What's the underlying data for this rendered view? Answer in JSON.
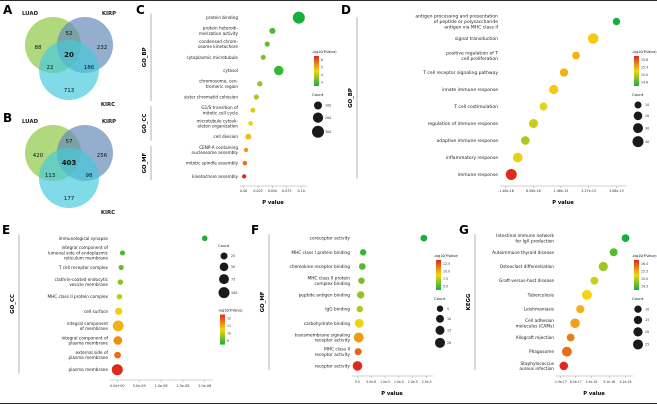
{
  "panels": {
    "a": "A",
    "b": "B",
    "c": "C",
    "d": "D",
    "e": "E",
    "f": "F",
    "g": "G"
  },
  "chart_data": [
    {
      "id": "venn_a",
      "type": "venn",
      "sets": [
        {
          "label": "LUAD",
          "color": "#8bc53f"
        },
        {
          "label": "KIRP",
          "color": "#6188b7"
        },
        {
          "label": "KIRC",
          "color": "#45c8dc"
        }
      ],
      "regions": {
        "set1_only": "88",
        "set1_set2": "52",
        "set2_only": "232",
        "center": "20",
        "set1_set3": "22",
        "set2_set3": "186",
        "set3_only": "713"
      }
    },
    {
      "id": "venn_b",
      "type": "venn",
      "sets": [
        {
          "label": "LUAD",
          "color": "#8bc53f"
        },
        {
          "label": "KIRP",
          "color": "#6188b7"
        },
        {
          "label": "KIRC",
          "color": "#45c8dc"
        }
      ],
      "regions": {
        "set1_only": "420",
        "set1_set2": "57",
        "set2_only": "256",
        "center": "403",
        "set1_set3": "113",
        "set2_set3": "98",
        "set3_only": "177"
      }
    },
    {
      "id": "c",
      "type": "scatter",
      "xlabel": "P value",
      "x_range": [
        -0.003,
        0.105
      ],
      "x_ticks": [
        {
          "v": 0,
          "label": "0.00"
        },
        {
          "v": 0.025,
          "label": "0.025"
        },
        {
          "v": 0.05,
          "label": "0.050"
        },
        {
          "v": 0.075,
          "label": "0.075"
        },
        {
          "v": 0.1,
          "label": "0.10"
        }
      ],
      "color_domain": [
        2,
        7
      ],
      "max_count": 300,
      "groups": [
        {
          "label": "GO_BP",
          "rows": [
            0,
            6
          ]
        },
        {
          "label": "GO_CC",
          "rows": [
            7,
            9
          ]
        },
        {
          "label": "GO_MF",
          "rows": [
            10,
            12
          ]
        }
      ],
      "terms": [
        {
          "lines": [
            "protein binding"
          ],
          "x": 0.096,
          "neglog": 2.0,
          "count": 300
        },
        {
          "lines": [
            "protein heterodi-",
            "merization activity"
          ],
          "x": 0.05,
          "neglog": 2.6,
          "count": 40
        },
        {
          "lines": [
            "condensed chrom-",
            "osome kinetochore"
          ],
          "x": 0.041,
          "neglog": 2.9,
          "count": 24
        },
        {
          "lines": [
            "cytoplasmic microtubule"
          ],
          "x": 0.034,
          "neglog": 3.1,
          "count": 20
        },
        {
          "lines": [
            "cytosol"
          ],
          "x": 0.061,
          "neglog": 2.4,
          "count": 160
        },
        {
          "lines": [
            "chromosome, cen-",
            "tromeric region"
          ],
          "x": 0.028,
          "neglog": 3.4,
          "count": 26
        },
        {
          "lines": [
            "sister chromatid cohesion"
          ],
          "x": 0.022,
          "neglog": 3.7,
          "count": 22
        },
        {
          "lines": [
            "G1/S transition of",
            "mitotic cell cycle"
          ],
          "x": 0.016,
          "neglog": 4.1,
          "count": 19
        },
        {
          "lines": [
            "microtubule cytosk-",
            "eleton organization"
          ],
          "x": 0.012,
          "neglog": 4.4,
          "count": 17
        },
        {
          "lines": [
            "cell division"
          ],
          "x": 0.008,
          "neglog": 4.9,
          "count": 38
        },
        {
          "lines": [
            "CENP-A containing",
            "nucleosome assembly"
          ],
          "x": 0.004,
          "neglog": 5.4,
          "count": 11
        },
        {
          "lines": [
            "mitotic spindle assembly"
          ],
          "x": 0.002,
          "neglog": 5.9,
          "count": 13
        },
        {
          "lines": [
            "kinetochore assembly"
          ],
          "x": 0.0008,
          "neglog": 7.0,
          "count": 10
        }
      ],
      "legend": {
        "order": [
          "color",
          "count"
        ],
        "color_title": "-log10(P.Value)",
        "color_ticks": [
          "6",
          "5",
          "4",
          "3"
        ],
        "count_title": "Count",
        "count_values": [
          100,
          200,
          300
        ]
      }
    },
    {
      "id": "d",
      "type": "scatter",
      "xlabel": "P value",
      "x_range": [
        -2.6e-16,
        3.3e-15
      ],
      "x_ticks": [
        {
          "v": -1.46e-16,
          "label": "-1.46e-16"
        },
        {
          "v": 6.56e-16,
          "label": "6.56e-16"
        },
        {
          "v": 1.46e-15,
          "label": "1.46e-15"
        },
        {
          "v": 2.27e-15,
          "label": "2.27e-15"
        },
        {
          "v": 3.08e-15,
          "label": "3.08e-15"
        }
      ],
      "color_domain": [
        14.5,
        16
      ],
      "max_count": 40,
      "groups": [
        {
          "label": "GO_BP",
          "rows": [
            0,
            9
          ]
        }
      ],
      "terms": [
        {
          "lines": [
            "antigen processing and presentation",
            "of peptide or polysaccharide",
            "antigen via MHC class II"
          ],
          "x": 3.08e-15,
          "neglog": 14.5,
          "count": 12
        },
        {
          "lines": [
            "signal transduction"
          ],
          "x": 2.4e-15,
          "neglog": 15.3,
          "count": 35
        },
        {
          "lines": [
            "positive regulation of T",
            "cell proliferation"
          ],
          "x": 1.9e-15,
          "neglog": 15.4,
          "count": 14
        },
        {
          "lines": [
            "T cell receptor signaling pathway"
          ],
          "x": 1.55e-15,
          "neglog": 15.4,
          "count": 18
        },
        {
          "lines": [
            "innate immune response"
          ],
          "x": 1.25e-15,
          "neglog": 15.3,
          "count": 24
        },
        {
          "lines": [
            "T cell costimulation"
          ],
          "x": 9.5e-16,
          "neglog": 15.2,
          "count": 15
        },
        {
          "lines": [
            "regulation of immune response"
          ],
          "x": 6.6e-16,
          "neglog": 15.1,
          "count": 23
        },
        {
          "lines": [
            "adaptive immune response"
          ],
          "x": 4.2e-16,
          "neglog": 15.0,
          "count": 20
        },
        {
          "lines": [
            "inflammatory response"
          ],
          "x": 2e-16,
          "neglog": 15.2,
          "count": 28
        },
        {
          "lines": [
            "immune response"
          ],
          "x": 1e-17,
          "neglog": 16.0,
          "count": 40
        }
      ],
      "legend": {
        "order": [
          "color",
          "count"
        ],
        "color_title": "-log10(P.Value)",
        "color_ticks": [
          "15.8",
          "15.4",
          "15.0",
          "14.6"
        ],
        "count_title": "Count",
        "count_values": [
          10,
          20,
          30,
          40
        ]
      }
    },
    {
      "id": "e",
      "type": "scatter",
      "xlabel": "",
      "x_range": [
        -1.2e-09,
        2.12e-08
      ],
      "x_ticks": [
        {
          "v": 0,
          "label": "0.0e+00"
        },
        {
          "v": 5e-09,
          "label": "5.0e-09"
        },
        {
          "v": 1e-08,
          "label": "1.0e-08"
        },
        {
          "v": 1.5e-08,
          "label": "1.5e-08"
        },
        {
          "v": 2e-08,
          "label": "2.0e-08"
        }
      ],
      "color_domain": [
        8,
        13
      ],
      "max_count": 100,
      "groups": [
        {
          "label": "GO_CC",
          "rows": [
            0,
            9
          ]
        }
      ],
      "terms": [
        {
          "lines": [
            "immunological synapse"
          ],
          "x": 2e-08,
          "neglog": 8.0,
          "count": 10
        },
        {
          "lines": [
            "integral component of",
            "lumenal side of endoplasmic",
            "reticulum membrane"
          ],
          "x": 1.2e-09,
          "neglog": 8.6,
          "count": 7
        },
        {
          "lines": [
            "T cell receptor complex"
          ],
          "x": 9e-10,
          "neglog": 8.9,
          "count": 8
        },
        {
          "lines": [
            "clathrin-coated endocytic",
            "vesicle membrane"
          ],
          "x": 7e-10,
          "neglog": 9.3,
          "count": 10
        },
        {
          "lines": [
            "MHC class II protein complex"
          ],
          "x": 5e-10,
          "neglog": 9.8,
          "count": 9
        },
        {
          "lines": [
            "cell surface"
          ],
          "x": 3.2e-10,
          "neglog": 10.6,
          "count": 30
        },
        {
          "lines": [
            "integral component",
            "of membrane"
          ],
          "x": 2.2e-10,
          "neglog": 11.0,
          "count": 95
        },
        {
          "lines": [
            "integral component of",
            "plasma membrane"
          ],
          "x": 1.4e-10,
          "neglog": 11.5,
          "count": 50
        },
        {
          "lines": [
            "external side of",
            "plasma membrane"
          ],
          "x": 7e-11,
          "neglog": 12.0,
          "count": 22
        },
        {
          "lines": [
            "plasma membrane"
          ],
          "x": 1e-11,
          "neglog": 13.0,
          "count": 100
        }
      ],
      "legend": {
        "order": [
          "count",
          "color"
        ],
        "color_title": "-log10(P.Value)",
        "color_ticks": [
          "12",
          "11",
          "10",
          "9"
        ],
        "count_title": "Count",
        "count_values": [
          25,
          50,
          75,
          100
        ]
      }
    },
    {
      "id": "f",
      "type": "scatter",
      "xlabel": "P value",
      "x_range": [
        -1.2e-06,
        2.62e-05
      ],
      "x_ticks": [
        {
          "v": 0,
          "label": "0.0"
        },
        {
          "v": 5e-06,
          "label": "5.0e-6"
        },
        {
          "v": 1e-05,
          "label": "1.0e-5"
        },
        {
          "v": 1.5e-05,
          "label": "1.5e-5"
        },
        {
          "v": 2e-05,
          "label": "2.0e-5"
        },
        {
          "v": 2.5e-05,
          "label": "2.5e-5"
        }
      ],
      "color_domain": [
        5,
        12.5
      ],
      "max_count": 20,
      "groups": [
        {
          "label": "GO_MF",
          "rows": [
            0,
            9
          ]
        }
      ],
      "terms": [
        {
          "lines": [
            "coreceptor activity"
          ],
          "x": 2.4e-05,
          "neglog": 5.0,
          "count": 6
        },
        {
          "lines": [
            "MHC class I protein binding"
          ],
          "x": 2.1e-06,
          "neglog": 5.6,
          "count": 5
        },
        {
          "lines": [
            "chemokine receptor binding"
          ],
          "x": 1.8e-06,
          "neglog": 6.1,
          "count": 6
        },
        {
          "lines": [
            "MHC class II protein",
            "complex binding"
          ],
          "x": 1.5e-06,
          "neglog": 6.6,
          "count": 5
        },
        {
          "lines": [
            "peptide antigen binding"
          ],
          "x": 1.2e-06,
          "neglog": 7.1,
          "count": 8
        },
        {
          "lines": [
            "IgG binding"
          ],
          "x": 9e-07,
          "neglog": 7.6,
          "count": 5
        },
        {
          "lines": [
            "carbohydrate binding"
          ],
          "x": 7e-07,
          "neglog": 8.6,
          "count": 14
        },
        {
          "lines": [
            "transmembrane signaling",
            "receptor activity"
          ],
          "x": 5e-07,
          "neglog": 10.0,
          "count": 20
        },
        {
          "lines": [
            "MHC class II",
            "receptor activity"
          ],
          "x": 3e-07,
          "neglog": 11.2,
          "count": 7
        },
        {
          "lines": [
            "receptor activity"
          ],
          "x": 6e-08,
          "neglog": 12.5,
          "count": 18
        }
      ],
      "legend": {
        "order": [
          "color",
          "count"
        ],
        "color_title": "-log10(P.Value)",
        "color_ticks": [
          "12.5",
          "10.0",
          "7.5",
          "5.0"
        ],
        "count_title": "Count",
        "count_values": [
          5,
          10,
          15,
          20
        ]
      }
    },
    {
      "id": "g",
      "type": "scatter",
      "xlabel": "P value",
      "x_range": [
        -3.5e-17,
        4.5e-16
      ],
      "x_ticks": [
        {
          "v": -1.9e-17,
          "label": "-1.9e-17"
        },
        {
          "v": 8.5e-17,
          "label": "8.5e-17"
        },
        {
          "v": 1.9e-16,
          "label": "1.9e-16"
        },
        {
          "v": 3.1e-16,
          "label": "3.1e-16"
        },
        {
          "v": 4.2e-16,
          "label": "4.2e-16"
        }
      ],
      "color_domain": [
        14.4,
        16.4
      ],
      "max_count": 25,
      "groups": [
        {
          "label": "KEGG",
          "rows": [
            0,
            9
          ]
        }
      ],
      "terms": [
        {
          "lines": [
            "Intestinal immune network",
            "for IgA production"
          ],
          "x": 4.2e-16,
          "neglog": 14.4,
          "count": 12
        },
        {
          "lines": [
            "Autoimmune thyroid disease"
          ],
          "x": 3.4e-16,
          "neglog": 14.7,
          "count": 13
        },
        {
          "lines": [
            "Osteoclast differentiation"
          ],
          "x": 2.7e-16,
          "neglog": 15.0,
          "count": 20
        },
        {
          "lines": [
            "Graft-versus-host disease"
          ],
          "x": 2.1e-16,
          "neglog": 15.2,
          "count": 12
        },
        {
          "lines": [
            "Tuberculosis"
          ],
          "x": 1.6e-16,
          "neglog": 15.4,
          "count": 25
        },
        {
          "lines": [
            "Leishmaniasis"
          ],
          "x": 1.15e-16,
          "neglog": 15.6,
          "count": 14
        },
        {
          "lines": [
            "Cell adhesion",
            "molecules (CAMs)"
          ],
          "x": 8e-17,
          "neglog": 15.7,
          "count": 22
        },
        {
          "lines": [
            "Allograft rejection"
          ],
          "x": 5e-17,
          "neglog": 15.9,
          "count": 12
        },
        {
          "lines": [
            "Phagosome"
          ],
          "x": 2.5e-17,
          "neglog": 16.0,
          "count": 24
        },
        {
          "lines": [
            "Staphylococcus",
            "aureus infection"
          ],
          "x": 4e-18,
          "neglog": 16.4,
          "count": 16
        }
      ],
      "legend": {
        "order": [
          "color",
          "count"
        ],
        "color_title": "-log10(P.Value)",
        "color_ticks": [
          "16.0",
          "15.5",
          "15.0",
          "14.5"
        ],
        "count_title": "Count",
        "count_values": [
          10,
          15,
          20,
          25
        ]
      }
    }
  ]
}
